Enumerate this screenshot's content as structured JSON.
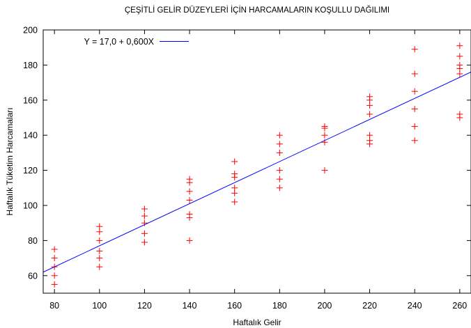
{
  "chart_data": {
    "type": "scatter",
    "title": "ÇEŞİTLİ GELİR DÜZEYLERİ İÇİN HARCAMALARIN KOŞULLU DAĞILIMI",
    "xlabel": "Haftalık Gelir",
    "ylabel": "Haftalık Tüketim Harcamaları",
    "xlim": [
      75,
      265
    ],
    "ylim": [
      50,
      200
    ],
    "xticks": [
      80,
      100,
      120,
      140,
      160,
      180,
      200,
      220,
      240,
      260
    ],
    "yticks": [
      60,
      80,
      100,
      120,
      140,
      160,
      180,
      200
    ],
    "grid": false,
    "legend_position": "top-left",
    "series": [
      {
        "type": "scatter",
        "marker": "plus",
        "color": "#ff0000",
        "points": [
          {
            "x": 80,
            "y": 55
          },
          {
            "x": 80,
            "y": 60
          },
          {
            "x": 80,
            "y": 65
          },
          {
            "x": 80,
            "y": 70
          },
          {
            "x": 80,
            "y": 75
          },
          {
            "x": 100,
            "y": 65
          },
          {
            "x": 100,
            "y": 70
          },
          {
            "x": 100,
            "y": 74
          },
          {
            "x": 100,
            "y": 80
          },
          {
            "x": 100,
            "y": 85
          },
          {
            "x": 100,
            "y": 88
          },
          {
            "x": 120,
            "y": 79
          },
          {
            "x": 120,
            "y": 84
          },
          {
            "x": 120,
            "y": 90
          },
          {
            "x": 120,
            "y": 94
          },
          {
            "x": 120,
            "y": 98
          },
          {
            "x": 140,
            "y": 80
          },
          {
            "x": 140,
            "y": 93
          },
          {
            "x": 140,
            "y": 95
          },
          {
            "x": 140,
            "y": 103
          },
          {
            "x": 140,
            "y": 108
          },
          {
            "x": 140,
            "y": 113
          },
          {
            "x": 140,
            "y": 115
          },
          {
            "x": 160,
            "y": 102
          },
          {
            "x": 160,
            "y": 107
          },
          {
            "x": 160,
            "y": 110
          },
          {
            "x": 160,
            "y": 116
          },
          {
            "x": 160,
            "y": 118
          },
          {
            "x": 160,
            "y": 125
          },
          {
            "x": 180,
            "y": 110
          },
          {
            "x": 180,
            "y": 115
          },
          {
            "x": 180,
            "y": 120
          },
          {
            "x": 180,
            "y": 130
          },
          {
            "x": 180,
            "y": 135
          },
          {
            "x": 180,
            "y": 140
          },
          {
            "x": 200,
            "y": 120
          },
          {
            "x": 200,
            "y": 136
          },
          {
            "x": 200,
            "y": 140
          },
          {
            "x": 200,
            "y": 144
          },
          {
            "x": 200,
            "y": 145
          },
          {
            "x": 220,
            "y": 135
          },
          {
            "x": 220,
            "y": 137
          },
          {
            "x": 220,
            "y": 140
          },
          {
            "x": 220,
            "y": 152
          },
          {
            "x": 220,
            "y": 157
          },
          {
            "x": 220,
            "y": 160
          },
          {
            "x": 220,
            "y": 162
          },
          {
            "x": 240,
            "y": 137
          },
          {
            "x": 240,
            "y": 145
          },
          {
            "x": 240,
            "y": 155
          },
          {
            "x": 240,
            "y": 165
          },
          {
            "x": 240,
            "y": 175
          },
          {
            "x": 240,
            "y": 189
          },
          {
            "x": 260,
            "y": 150
          },
          {
            "x": 260,
            "y": 152
          },
          {
            "x": 260,
            "y": 175
          },
          {
            "x": 260,
            "y": 178
          },
          {
            "x": 260,
            "y": 180
          },
          {
            "x": 260,
            "y": 185
          },
          {
            "x": 260,
            "y": 191
          }
        ]
      },
      {
        "type": "line",
        "name": "Y = 17,0 + 0,600X",
        "color": "#0000ff",
        "intercept": 17.0,
        "slope": 0.6
      }
    ]
  }
}
